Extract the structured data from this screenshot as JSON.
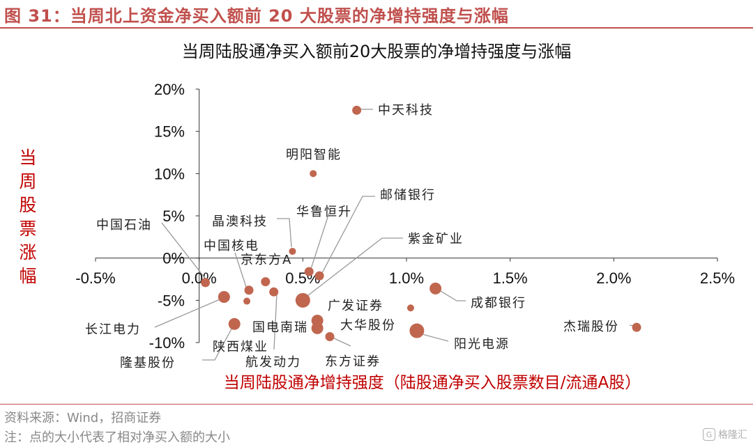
{
  "figure_title": "图 31：当周北上资金净买入额前 20 大股票的净增持强度与涨幅",
  "source": "资料来源：Wind，招商证券",
  "note": "注：点的大小代表了相对净买入额的大小",
  "watermark": {
    "icon": "logo-icon",
    "glyph": "G",
    "text": "格隆汇"
  },
  "colors": {
    "point": "#c0664f",
    "title": "#c0504d",
    "axis_label": "#c00000",
    "leader": "#999999"
  },
  "chart_data": {
    "type": "scatter",
    "title": "当周陆股通净买入额前20大股票的净增持强度与涨幅",
    "xlabel": "当周陆股通净增持强度（陆股通净买入股票数目/流通A股）",
    "ylabel": "当周股票涨幅",
    "xlim": [
      -0.5,
      2.5
    ],
    "ylim": [
      -10,
      20
    ],
    "x_unit": "%",
    "y_unit": "%",
    "x_ticks": [
      "-0.5%",
      "0.0%",
      "0.5%",
      "1.0%",
      "1.5%",
      "2.0%",
      "2.5%"
    ],
    "y_ticks": [
      "20%",
      "15%",
      "10%",
      "5%",
      "0%",
      "-5%",
      "-10%"
    ],
    "grid": false,
    "points": [
      {
        "name": "中天科技",
        "x": 0.76,
        "y": 17.5,
        "size": 2
      },
      {
        "name": "明阳智能",
        "x": 0.55,
        "y": 10.0,
        "size": 1
      },
      {
        "name": "邮储银行",
        "x": 0.58,
        "y": -2.1,
        "size": 2
      },
      {
        "name": "华鲁恒升",
        "x": 0.53,
        "y": -1.6,
        "size": 2
      },
      {
        "name": "晶澳科技",
        "x": 0.45,
        "y": 0.8,
        "size": 1
      },
      {
        "name": "紫金矿业",
        "x": 0.5,
        "y": -5.0,
        "size": 4
      },
      {
        "name": "中国石油",
        "x": 0.03,
        "y": -2.9,
        "size": 2
      },
      {
        "name": "中国核电",
        "x": 0.24,
        "y": -3.8,
        "size": 2
      },
      {
        "name": "京东方A",
        "x": 0.32,
        "y": -2.8,
        "size": 2
      },
      {
        "name": "航发动力",
        "x": 0.36,
        "y": -4.0,
        "size": 2
      },
      {
        "name": "长江电力",
        "x": 0.12,
        "y": -4.6,
        "size": 3
      },
      {
        "name": "陕西煤业",
        "x": 0.23,
        "y": -5.1,
        "size": 1
      },
      {
        "name": "隆基股份",
        "x": 0.17,
        "y": -7.8,
        "size": 3
      },
      {
        "name": "国电南瑞",
        "x": 0.57,
        "y": -7.4,
        "size": 3
      },
      {
        "name": "广发证券",
        "x": 1.02,
        "y": -5.9,
        "size": 1
      },
      {
        "name": "大华股份",
        "x": 0.57,
        "y": -8.3,
        "size": 3
      },
      {
        "name": "东方证券",
        "x": 0.63,
        "y": -9.3,
        "size": 2
      },
      {
        "name": "阳光电源",
        "x": 1.05,
        "y": -8.6,
        "size": 4
      },
      {
        "name": "成都银行",
        "x": 1.14,
        "y": -3.6,
        "size": 3
      },
      {
        "name": "杰瑞股份",
        "x": 2.11,
        "y": -8.2,
        "size": 2
      }
    ]
  }
}
